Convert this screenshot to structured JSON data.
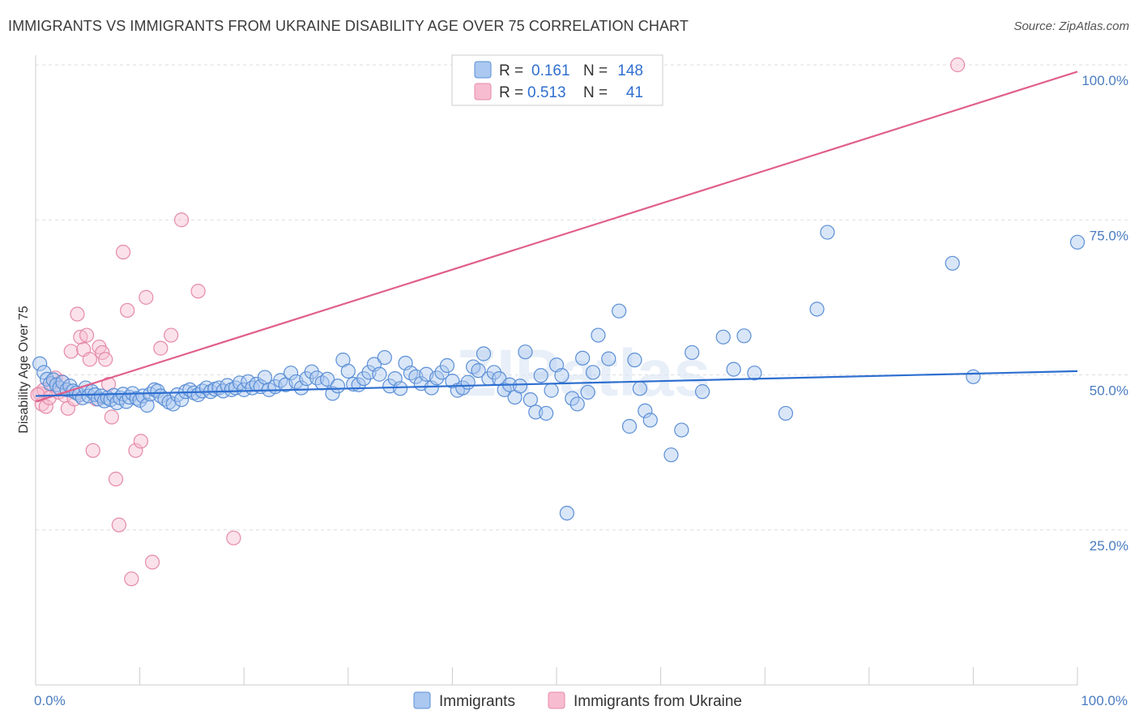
{
  "header": {
    "title": "IMMIGRANTS VS IMMIGRANTS FROM UKRAINE DISABILITY AGE OVER 75 CORRELATION CHART",
    "source": "Source: ZipAtlas.com"
  },
  "watermark": "ZIPatlas",
  "colors": {
    "blue_fill": "#aac8f0",
    "blue_stroke": "#5b8fd6",
    "blue_line": "#2e6fd0",
    "pink_fill": "#f7bcd0",
    "pink_stroke": "#e58aa8",
    "pink_line": "#e0608c",
    "tick_text": "#4a7cc0",
    "grid": "#dddddd"
  },
  "legend": {
    "rows": [
      {
        "r_label": "R =",
        "r_value": "0.161",
        "n_label": "N =",
        "n_value": "148"
      },
      {
        "r_label": "R =",
        "r_value": "0.513",
        "n_label": "N =",
        "n_value": "41"
      }
    ]
  },
  "bottom_legend": [
    "Immigrants",
    "Immigrants from Ukraine"
  ],
  "chart_data": {
    "type": "scatter",
    "title": "IMMIGRANTS VS IMMIGRANTS FROM UKRAINE DISABILITY AGE OVER 75 CORRELATION CHART",
    "xlabel": "",
    "ylabel": "Disability Age Over 75",
    "xlim": [
      0,
      100
    ],
    "ylim": [
      0,
      100
    ],
    "x_tick_labels": [
      "0.0%",
      "100.0%"
    ],
    "y_ticks": [
      25,
      50,
      75,
      100
    ],
    "y_tick_labels": [
      "25.0%",
      "50.0%",
      "75.0%",
      "100.0%"
    ],
    "grid": "horizontal dashed",
    "legend_position": "top-center",
    "series": [
      {
        "name": "Immigrants",
        "R": 0.161,
        "N": 148,
        "trend": {
          "x": [
            0,
            100
          ],
          "y": [
            46.6,
            50.6
          ]
        },
        "points": [
          [
            0.4,
            51.8
          ],
          [
            0.8,
            50.4
          ],
          [
            1.1,
            49.3
          ],
          [
            1.4,
            48.6
          ],
          [
            1.7,
            49.2
          ],
          [
            2.0,
            48.4
          ],
          [
            2.3,
            47.9
          ],
          [
            2.6,
            48.8
          ],
          [
            3.0,
            47.6
          ],
          [
            3.3,
            48.2
          ],
          [
            3.6,
            47.4
          ],
          [
            3.9,
            47.1
          ],
          [
            4.2,
            46.8
          ],
          [
            4.5,
            46.3
          ],
          [
            4.8,
            47.9
          ],
          [
            5.1,
            46.6
          ],
          [
            5.4,
            47.3
          ],
          [
            5.7,
            46.8
          ],
          [
            6.0,
            46.1
          ],
          [
            6.3,
            46.6
          ],
          [
            6.6,
            45.8
          ],
          [
            6.9,
            46.3
          ],
          [
            7.2,
            46.0
          ],
          [
            7.5,
            46.7
          ],
          [
            7.8,
            45.5
          ],
          [
            8.1,
            46.3
          ],
          [
            8.4,
            46.9
          ],
          [
            8.7,
            45.7
          ],
          [
            9.0,
            46.4
          ],
          [
            9.3,
            47.0
          ],
          [
            9.7,
            46.2
          ],
          [
            10.0,
            45.9
          ],
          [
            10.3,
            46.6
          ],
          [
            10.7,
            45.1
          ],
          [
            11.0,
            46.9
          ],
          [
            11.4,
            47.6
          ],
          [
            11.7,
            47.4
          ],
          [
            12.0,
            46.6
          ],
          [
            12.4,
            46.1
          ],
          [
            12.8,
            45.6
          ],
          [
            13.2,
            45.3
          ],
          [
            13.6,
            46.8
          ],
          [
            14.0,
            46.0
          ],
          [
            14.4,
            47.3
          ],
          [
            14.8,
            47.6
          ],
          [
            15.2,
            47.1
          ],
          [
            15.6,
            46.8
          ],
          [
            16.0,
            47.4
          ],
          [
            16.4,
            47.9
          ],
          [
            16.8,
            47.3
          ],
          [
            17.2,
            47.7
          ],
          [
            17.6,
            47.9
          ],
          [
            18.0,
            47.4
          ],
          [
            18.4,
            48.3
          ],
          [
            18.8,
            47.6
          ],
          [
            19.2,
            47.9
          ],
          [
            19.6,
            48.7
          ],
          [
            20.0,
            47.6
          ],
          [
            20.4,
            48.9
          ],
          [
            20.8,
            47.9
          ],
          [
            21.2,
            48.5
          ],
          [
            21.6,
            48.1
          ],
          [
            22.0,
            49.6
          ],
          [
            22.4,
            47.6
          ],
          [
            23.0,
            48.1
          ],
          [
            23.5,
            49.1
          ],
          [
            24.0,
            48.4
          ],
          [
            24.5,
            50.3
          ],
          [
            25.0,
            48.9
          ],
          [
            25.5,
            47.9
          ],
          [
            26.0,
            49.4
          ],
          [
            26.5,
            50.5
          ],
          [
            27.0,
            49.5
          ],
          [
            27.5,
            48.7
          ],
          [
            28.0,
            49.3
          ],
          [
            28.5,
            47.0
          ],
          [
            29.0,
            48.2
          ],
          [
            29.5,
            52.4
          ],
          [
            30.0,
            50.6
          ],
          [
            30.5,
            48.5
          ],
          [
            31.0,
            48.4
          ],
          [
            31.5,
            49.4
          ],
          [
            32.0,
            50.4
          ],
          [
            32.5,
            51.7
          ],
          [
            33.0,
            50.1
          ],
          [
            33.5,
            52.8
          ],
          [
            34.0,
            48.2
          ],
          [
            34.5,
            49.4
          ],
          [
            35.0,
            47.8
          ],
          [
            35.5,
            51.9
          ],
          [
            36.0,
            50.3
          ],
          [
            36.5,
            49.7
          ],
          [
            37.0,
            48.6
          ],
          [
            37.5,
            50.1
          ],
          [
            38.0,
            47.9
          ],
          [
            38.5,
            49.5
          ],
          [
            39.0,
            50.4
          ],
          [
            39.5,
            51.5
          ],
          [
            40.0,
            49.0
          ],
          [
            40.5,
            47.5
          ],
          [
            41.0,
            47.9
          ],
          [
            41.5,
            48.8
          ],
          [
            42.0,
            51.3
          ],
          [
            42.5,
            50.7
          ],
          [
            43.0,
            53.4
          ],
          [
            43.5,
            49.4
          ],
          [
            44.0,
            50.4
          ],
          [
            44.5,
            49.4
          ],
          [
            45.0,
            47.6
          ],
          [
            45.5,
            48.4
          ],
          [
            46.0,
            46.4
          ],
          [
            46.5,
            48.2
          ],
          [
            47.0,
            53.7
          ],
          [
            47.5,
            46.0
          ],
          [
            48.0,
            44.0
          ],
          [
            48.5,
            49.9
          ],
          [
            49.0,
            43.8
          ],
          [
            49.5,
            47.5
          ],
          [
            50.0,
            51.6
          ],
          [
            50.5,
            49.9
          ],
          [
            51.0,
            27.7
          ],
          [
            51.5,
            46.2
          ],
          [
            52.0,
            45.3
          ],
          [
            52.5,
            52.7
          ],
          [
            53.0,
            47.2
          ],
          [
            53.5,
            50.4
          ],
          [
            54.0,
            56.4
          ],
          [
            55.0,
            52.6
          ],
          [
            56.0,
            60.3
          ],
          [
            57.0,
            41.7
          ],
          [
            57.5,
            52.4
          ],
          [
            58.0,
            47.8
          ],
          [
            58.5,
            44.2
          ],
          [
            59.0,
            42.7
          ],
          [
            61.0,
            37.1
          ],
          [
            62.0,
            41.1
          ],
          [
            63.0,
            53.6
          ],
          [
            64.0,
            47.3
          ],
          [
            66.0,
            56.1
          ],
          [
            67.0,
            50.9
          ],
          [
            68.0,
            56.3
          ],
          [
            69.0,
            50.3
          ],
          [
            72.0,
            43.8
          ],
          [
            75.0,
            60.6
          ],
          [
            76.0,
            73.0
          ],
          [
            88.0,
            68.0
          ],
          [
            90.0,
            49.7
          ],
          [
            100.0,
            71.4
          ]
        ]
      },
      {
        "name": "Immigrants from Ukraine",
        "R": 0.513,
        "N": 41,
        "trend": {
          "x": [
            0,
            100
          ],
          "y": [
            45.7,
            98.9
          ]
        },
        "points": [
          [
            0.4,
            47.0
          ],
          [
            0.6,
            45.3
          ],
          [
            0.8,
            47.6
          ],
          [
            1.0,
            44.9
          ],
          [
            1.3,
            46.3
          ],
          [
            1.6,
            48.5
          ],
          [
            1.9,
            49.5
          ],
          [
            2.2,
            47.2
          ],
          [
            2.5,
            48.9
          ],
          [
            2.8,
            46.7
          ],
          [
            3.1,
            44.6
          ],
          [
            3.4,
            53.8
          ],
          [
            3.7,
            46.1
          ],
          [
            4.0,
            59.8
          ],
          [
            4.3,
            56.1
          ],
          [
            4.6,
            54.1
          ],
          [
            4.9,
            56.4
          ],
          [
            5.2,
            52.5
          ],
          [
            5.5,
            37.8
          ],
          [
            5.8,
            46.1
          ],
          [
            6.1,
            54.5
          ],
          [
            6.4,
            53.6
          ],
          [
            6.7,
            52.5
          ],
          [
            7.0,
            48.5
          ],
          [
            7.3,
            43.2
          ],
          [
            7.7,
            33.2
          ],
          [
            8.0,
            25.8
          ],
          [
            8.4,
            69.8
          ],
          [
            8.8,
            60.4
          ],
          [
            9.2,
            17.1
          ],
          [
            9.6,
            37.8
          ],
          [
            10.1,
            39.3
          ],
          [
            10.6,
            62.5
          ],
          [
            11.2,
            19.8
          ],
          [
            12.0,
            54.3
          ],
          [
            13.0,
            56.4
          ],
          [
            14.0,
            75.0
          ],
          [
            15.6,
            63.5
          ],
          [
            19.0,
            23.7
          ],
          [
            88.5,
            100.0
          ],
          [
            0.2,
            46.8
          ]
        ]
      }
    ]
  }
}
